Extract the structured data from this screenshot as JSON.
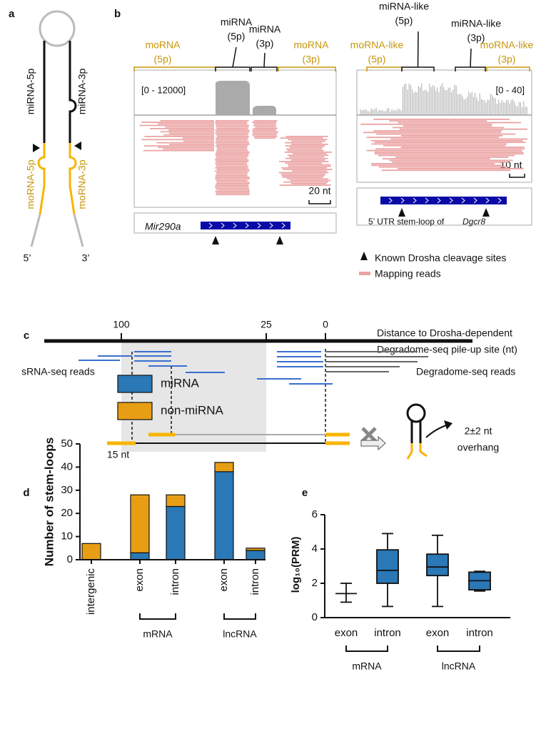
{
  "panels": {
    "a": {
      "label": "a",
      "texts": [
        "miRNA-5p",
        "miRNA-3p",
        "moRNA-5p",
        "moRNA-3p",
        "5’",
        "3’"
      ]
    },
    "b": {
      "label": "b",
      "left_labels": [
        "moRNA",
        "(5p)",
        "miRNA",
        "(5p)",
        "miRNA",
        "(3p)",
        "moRNA",
        "(3p)"
      ],
      "left_range": "[0 - 12000]",
      "left_scale": "20 nt",
      "left_gene": "Mir290a",
      "right_labels": [
        "moRNA-like",
        "(5p)",
        "miRNA-like",
        "(5p)",
        "miRNA-like",
        "(3p)",
        "moRNA-like",
        "(3p)"
      ],
      "right_range": "[0 - 40]",
      "right_scale": "10 nt",
      "right_gene_prefix": "5’ UTR stem-loop of",
      "right_gene": "Dgcr8",
      "legend": [
        "Known Drosha  cleavage sites",
        "Mapping reads"
      ]
    },
    "c": {
      "label": "c",
      "ticks": [
        "100",
        "25",
        "0"
      ],
      "axis_title": [
        "Distance to Drosha-dependent",
        "Degradome-seq pile-up site (nt)"
      ],
      "srna_label": "sRNA-seq reads",
      "degradome_label": "Degradome-seq reads",
      "length_label": "15 nt",
      "overhang": [
        "2±2 nt",
        "overhang"
      ]
    }
  },
  "chart_data": [
    {
      "type": "stacked_bar",
      "panel_label": "d",
      "ylabel": "Number of stem-loops",
      "categories": [
        "intergenic",
        "exon",
        "intron",
        "exon",
        "intron"
      ],
      "group_labels": [
        null,
        "mRNA",
        "mRNA",
        "lncRNA",
        "lncRNA"
      ],
      "series": [
        {
          "name": "miRNA",
          "color": "#2a78b6",
          "values": [
            0,
            3,
            23,
            38,
            4
          ]
        },
        {
          "name": "non-miRNA",
          "color": "#e89e14",
          "values": [
            7,
            25,
            5,
            4,
            1
          ]
        }
      ],
      "ylim": [
        0,
        50
      ],
      "yticks": [
        0,
        10,
        20,
        30,
        40,
        50
      ]
    },
    {
      "type": "box",
      "panel_label": "e",
      "ylabel": "log₁₀(PRM)",
      "categories": [
        "exon",
        "intron",
        "exon",
        "intron"
      ],
      "group_labels": [
        "mRNA",
        "mRNA",
        "lncRNA",
        "lncRNA"
      ],
      "color": "#2a78b6",
      "boxes": [
        {
          "min": 0.9,
          "q1": 1.4,
          "median": 1.4,
          "q3": 1.4,
          "max": 2.0
        },
        {
          "min": 0.65,
          "q1": 2.0,
          "median": 2.75,
          "q3": 3.95,
          "max": 4.9
        },
        {
          "min": 0.65,
          "q1": 2.45,
          "median": 2.95,
          "q3": 3.7,
          "max": 4.8
        },
        {
          "min": 1.55,
          "q1": 1.62,
          "median": 2.15,
          "q3": 2.65,
          "max": 2.7
        }
      ],
      "ylim": [
        0,
        6
      ],
      "yticks": [
        0,
        2,
        4,
        6
      ]
    }
  ]
}
